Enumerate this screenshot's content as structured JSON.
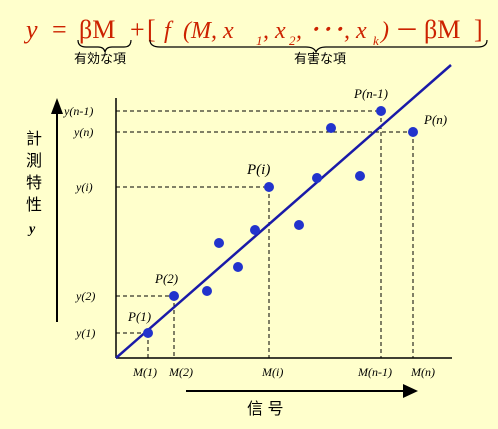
{
  "equation": {
    "y": "y",
    "equals": "=",
    "beta_m": "βM",
    "plus": "+",
    "open": "[",
    "f": "f",
    "args": "(M, x",
    "sub1": "1",
    "comma1": ", x",
    "sub2": "2",
    "dots": ", ･･･, x",
    "subk": "k",
    "close_paren": ")",
    "minus": "－",
    "beta_m2": "βM",
    "close": "]",
    "useful_label": "有効な項",
    "harmful_label": "有害な項"
  },
  "axes": {
    "y_label_chars": [
      "計",
      "測",
      "特",
      "性"
    ],
    "y_var": "y",
    "x_label": "信 号"
  },
  "y_ticks": [
    "y(n-1)",
    "y(n)",
    "y(i)",
    "y(2)",
    "y(1)"
  ],
  "x_ticks": [
    "M(1)",
    "M(2)",
    "M(i)",
    "M(n-1)",
    "M(n)"
  ],
  "point_labels": [
    "P(1)",
    "P(2)",
    "P(i)",
    "P(n-1)",
    "P(n)"
  ],
  "colors": {
    "background": "#ffffcc",
    "equation": "#cc2200",
    "points": "#2233cc",
    "line": "#1a1aa8",
    "axes": "#000000"
  }
}
